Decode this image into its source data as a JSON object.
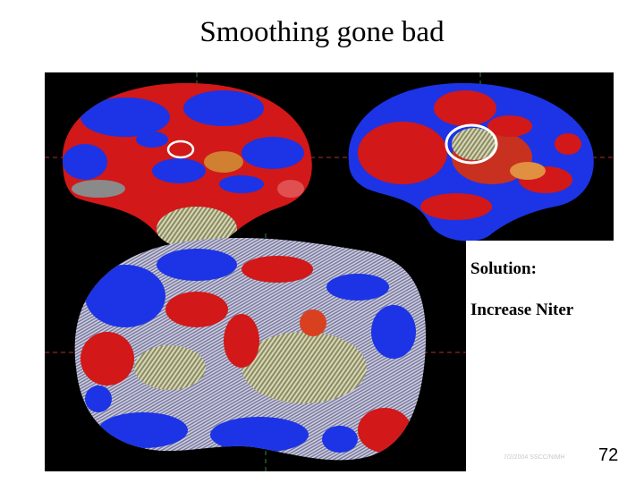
{
  "slide": {
    "title": "Smoothing gone bad",
    "solution_label": "Solution:",
    "solution_action": "Increase Niter",
    "footer": "7/2/2004 SSCC/NIMH",
    "page_number": "72"
  },
  "colors": {
    "background": "#ffffff",
    "figure_background": "#000000",
    "activation_red": "#e8201c",
    "activation_blue": "#1c3cf0",
    "surface_gray": "#a8a8a8",
    "highlight_circle": "#ffffff",
    "crosshair": "#c03030"
  }
}
